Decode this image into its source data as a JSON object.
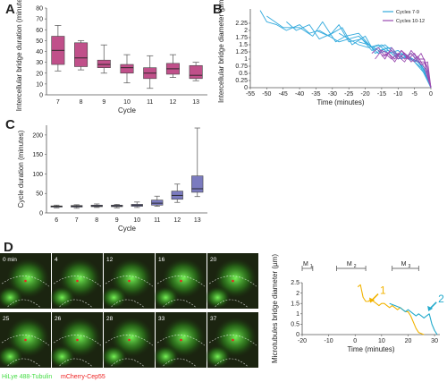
{
  "panels": {
    "A": "A",
    "B": "B",
    "C": "C",
    "D": "D"
  },
  "chart_data": [
    {
      "id": "A",
      "type": "box",
      "categories": [
        "7",
        "8",
        "9",
        "10",
        "11",
        "12",
        "13"
      ],
      "xlabel": "Cycle",
      "ylabel": "Intercellular bridge duration (minutes)",
      "ylim": [
        0,
        80
      ],
      "yticks": [
        0,
        10,
        20,
        30,
        40,
        50,
        60,
        70,
        80
      ],
      "color": "#c0508a",
      "boxes": [
        {
          "min": 22,
          "q1": 28,
          "median": 41,
          "q3": 54,
          "max": 64
        },
        {
          "min": 23,
          "q1": 26,
          "median": 34,
          "q3": 48,
          "max": 50
        },
        {
          "min": 20,
          "q1": 25,
          "median": 28,
          "q3": 32,
          "max": 46
        },
        {
          "min": 11,
          "q1": 20,
          "median": 25,
          "q3": 28,
          "max": 37
        },
        {
          "min": 6,
          "q1": 15,
          "median": 20,
          "q3": 25,
          "max": 36
        },
        {
          "min": 16,
          "q1": 19,
          "median": 24,
          "q3": 29,
          "max": 37
        },
        {
          "min": 13,
          "q1": 15,
          "median": 18,
          "q3": 27,
          "max": 30
        }
      ]
    },
    {
      "id": "B",
      "type": "line",
      "xlabel": "Time (minutes)",
      "ylabel": "Intercellular bridge diameter (µm)",
      "xlim": [
        -55,
        0
      ],
      "ylim": [
        0,
        2.5
      ],
      "xticks": [
        -55,
        -50,
        -45,
        -40,
        -35,
        -30,
        -25,
        -20,
        -15,
        -10,
        -5,
        0
      ],
      "yticks": [
        0,
        0.25,
        0.5,
        0.75,
        1,
        1.25,
        1.5,
        1.75,
        2,
        2.25
      ],
      "legend": [
        {
          "name": "Cycles 7-9",
          "color": "#33aadd"
        },
        {
          "name": "Cycles 10-12",
          "color": "#9a4ab0"
        }
      ],
      "series": [
        {
          "group": 0,
          "x": [
            -52,
            -50,
            -47,
            -44,
            -40,
            -37,
            -34,
            -31,
            -28,
            -25,
            -22,
            -19,
            -16,
            -13,
            -10,
            -7,
            -4,
            -1,
            0
          ],
          "y": [
            2.7,
            2.3,
            2.2,
            2.0,
            2.2,
            1.9,
            2.0,
            1.8,
            1.6,
            1.7,
            1.5,
            1.4,
            1.5,
            1.2,
            1.3,
            1.0,
            0.9,
            0.6,
            0
          ]
        },
        {
          "group": 0,
          "x": [
            -50,
            -45,
            -40,
            -36,
            -33,
            -29,
            -26,
            -22,
            -18,
            -15,
            -11,
            -8,
            -5,
            -2,
            0
          ],
          "y": [
            2.5,
            2.1,
            2.1,
            1.8,
            2.3,
            1.6,
            1.8,
            1.9,
            1.4,
            1.5,
            1.1,
            1.2,
            0.9,
            0.5,
            0
          ]
        },
        {
          "group": 0,
          "x": [
            -44,
            -41,
            -37,
            -34,
            -30,
            -27,
            -24,
            -20,
            -17,
            -13,
            -10,
            -6,
            -3,
            0
          ],
          "y": [
            2.3,
            2.0,
            2.2,
            1.7,
            1.9,
            2.1,
            1.5,
            1.8,
            1.2,
            1.4,
            1.1,
            1.0,
            0.7,
            0
          ]
        },
        {
          "group": 0,
          "x": [
            -35,
            -31,
            -28,
            -25,
            -21,
            -18,
            -14,
            -11,
            -7,
            -4,
            -1,
            0
          ],
          "y": [
            2.0,
            1.8,
            2.2,
            1.6,
            1.7,
            1.3,
            1.5,
            1.2,
            1.1,
            0.9,
            0.5,
            0
          ]
        },
        {
          "group": 0,
          "x": [
            -28,
            -25,
            -22,
            -19,
            -16,
            -12,
            -9,
            -6,
            -3,
            0
          ],
          "y": [
            1.9,
            1.7,
            1.8,
            1.5,
            1.3,
            1.4,
            1.0,
            1.2,
            0.8,
            0
          ]
        },
        {
          "group": 0,
          "x": [
            -22,
            -19,
            -16,
            -13,
            -10,
            -7,
            -4,
            -2,
            0
          ],
          "y": [
            1.6,
            1.5,
            1.2,
            1.3,
            1.0,
            1.1,
            0.9,
            0.6,
            0
          ]
        },
        {
          "group": 1,
          "x": [
            -18,
            -16,
            -14,
            -12,
            -10,
            -8,
            -6,
            -4,
            -2,
            0
          ],
          "y": [
            1.2,
            1.4,
            1.1,
            1.3,
            1.0,
            1.2,
            0.9,
            1.1,
            0.7,
            0
          ]
        },
        {
          "group": 1,
          "x": [
            -17,
            -15,
            -13,
            -11,
            -9,
            -7,
            -5,
            -3,
            -1,
            0
          ],
          "y": [
            1.0,
            1.3,
            1.2,
            0.9,
            1.3,
            1.0,
            1.2,
            0.8,
            0.9,
            0
          ]
        },
        {
          "group": 1,
          "x": [
            -16,
            -14,
            -12,
            -10,
            -8,
            -6,
            -4,
            -2,
            0
          ],
          "y": [
            1.3,
            1.0,
            1.4,
            1.1,
            0.9,
            1.3,
            1.0,
            1.0,
            0
          ]
        },
        {
          "group": 1,
          "x": [
            -15,
            -13,
            -11,
            -9,
            -7,
            -5,
            -3,
            -1,
            0
          ],
          "y": [
            1.1,
            1.2,
            1.0,
            1.3,
            1.1,
            0.9,
            1.2,
            0.7,
            0
          ]
        },
        {
          "group": 1,
          "x": [
            -14,
            -12,
            -10,
            -8,
            -6,
            -4,
            -2,
            0
          ],
          "y": [
            1.2,
            1.0,
            1.2,
            1.0,
            1.2,
            0.9,
            0.9,
            0
          ]
        }
      ]
    },
    {
      "id": "C",
      "type": "box",
      "categories": [
        "6",
        "7",
        "8",
        "9",
        "10",
        "11",
        "12",
        "13"
      ],
      "xlabel": "Cycle",
      "ylabel": "Cycle duration (minutes)",
      "ylim": [
        0,
        225
      ],
      "yticks": [
        0,
        50,
        100,
        150,
        200
      ],
      "color": "#7b7bbf",
      "boxes": [
        {
          "min": 13,
          "q1": 15,
          "median": 17,
          "q3": 18,
          "max": 20
        },
        {
          "min": 12,
          "q1": 15,
          "median": 17,
          "q3": 19,
          "max": 21
        },
        {
          "min": 14,
          "q1": 16,
          "median": 18,
          "q3": 20,
          "max": 23
        },
        {
          "min": 13,
          "q1": 16,
          "median": 18,
          "q3": 20,
          "max": 22
        },
        {
          "min": 14,
          "q1": 17,
          "median": 20,
          "q3": 22,
          "max": 28
        },
        {
          "min": 17,
          "q1": 20,
          "median": 25,
          "q3": 33,
          "max": 43
        },
        {
          "min": 27,
          "q1": 35,
          "median": 45,
          "q3": 56,
          "max": 74
        },
        {
          "min": 42,
          "q1": 53,
          "median": 62,
          "q3": 95,
          "max": 218
        }
      ]
    },
    {
      "id": "D-plot",
      "type": "line",
      "xlabel": "Time (minutes)",
      "ylabel": "Microtubules bridge diameter (µm)",
      "xlim": [
        -20,
        32
      ],
      "ylim": [
        0,
        2.5
      ],
      "xticks": [
        -20,
        -10,
        0,
        10,
        20,
        30
      ],
      "yticks": [
        0,
        0.5,
        1,
        1.5,
        2,
        2.5
      ],
      "phases": [
        {
          "label": "M",
          "sub": "1",
          "x0": -20,
          "x1": -16
        },
        {
          "label": "M",
          "sub": "2",
          "x0": -7,
          "x1": 4
        },
        {
          "label": "M",
          "sub": "3",
          "x0": 14,
          "x1": 24
        }
      ],
      "annotations": [
        {
          "text": "1",
          "x": 6,
          "y": 1.7
        },
        {
          "text": "2",
          "x": 28,
          "y": 1.3
        }
      ],
      "series": [
        {
          "name": "1",
          "color": "#f2b300",
          "x": [
            1,
            2,
            3,
            4,
            5,
            6,
            7,
            8,
            9,
            10,
            11,
            12,
            13,
            14,
            15,
            16,
            17,
            18,
            19,
            20,
            21,
            22,
            23,
            24,
            25,
            26
          ],
          "y": [
            2.3,
            2.4,
            1.8,
            1.6,
            1.6,
            1.7,
            1.6,
            1.5,
            1.4,
            1.5,
            1.5,
            1.4,
            1.3,
            1.4,
            1.3,
            1.2,
            1.3,
            1.2,
            1.1,
            1.1,
            0.9,
            0.6,
            0.3,
            0.1,
            0.05,
            0
          ]
        },
        {
          "name": "2",
          "color": "#22aacc",
          "x": [
            13,
            15,
            17,
            18,
            19,
            20,
            21,
            22,
            23,
            24,
            25,
            26,
            27,
            28,
            29,
            30,
            31
          ],
          "y": [
            1.5,
            1.4,
            1.3,
            1.2,
            1.1,
            1.2,
            1.1,
            1.0,
            0.9,
            1.0,
            0.9,
            0.8,
            0.9,
            1.0,
            0.5,
            0.2,
            0
          ]
        }
      ]
    }
  ],
  "microscopy": {
    "timestamps": [
      "0 min",
      "4",
      "12",
      "16",
      "20",
      "25",
      "26",
      "28",
      "33",
      "37"
    ],
    "label_a": "HiLye 488-Tubulin",
    "label_b": "mCherry-Cep55",
    "color_a": "#44dd44",
    "color_b": "#ee2222"
  }
}
